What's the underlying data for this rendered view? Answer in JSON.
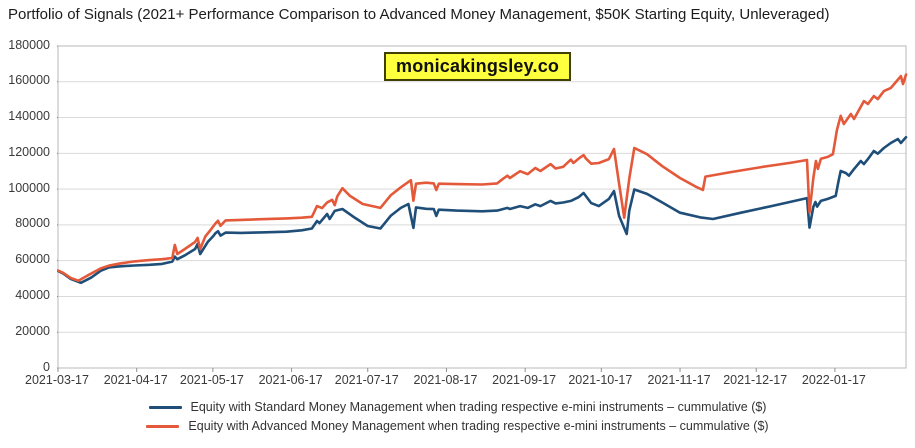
{
  "title": "Portfolio of Signals (2021+ Performance Comparison to Advanced Money Management, $50K Starting Equity, Unleveraged)",
  "watermark": {
    "text": "monicakingsley.co",
    "bg_color": "#feff3d",
    "border_color": "#3f3f00",
    "text_color": "#101010"
  },
  "colors": {
    "standard": "#1f4e79",
    "advanced": "#e4593a",
    "grid": "#d9d9d9",
    "border": "#b9b9b9",
    "tick": "#8f8f8f",
    "label_text": "#3a3a3a"
  },
  "chart_data": {
    "type": "line",
    "title": "Portfolio of Signals (2021+ Performance Comparison to Advanced Money Management, $50K Starting Equity, Unleveraged)",
    "xlabel": "",
    "ylabel": "",
    "grid": "horizontal",
    "legend_position": "bottom",
    "x_axis": {
      "unit": "days since 2021-03-17",
      "range_days": [
        0,
        334
      ],
      "tick_days": [
        0,
        31,
        61,
        92,
        122,
        153,
        184,
        214,
        245,
        275,
        306
      ],
      "tick_labels": [
        "2021-03-17",
        "2021-04-17",
        "2021-05-17",
        "2021-06-17",
        "2021-07-17",
        "2021-08-17",
        "2021-09-17",
        "2021-10-17",
        "2021-11-17",
        "2021-12-17",
        "2022-01-17"
      ]
    },
    "y_axis": {
      "range": [
        0,
        180000
      ],
      "tick_step": 20000,
      "tick_labels": [
        "0",
        "20000",
        "40000",
        "60000",
        "80000",
        "100000",
        "120000",
        "140000",
        "160000",
        "180000"
      ]
    },
    "series": [
      {
        "name": "Equity with Standard Money Management when trading respective e-mini instruments – cummulative ($)",
        "color_key": "standard",
        "points": [
          [
            0,
            54300
          ],
          [
            2,
            52900
          ],
          [
            5,
            49800
          ],
          [
            9,
            47600
          ],
          [
            13,
            50500
          ],
          [
            17,
            54500
          ],
          [
            20,
            56200
          ],
          [
            24,
            56800
          ],
          [
            30,
            57300
          ],
          [
            36,
            57700
          ],
          [
            41,
            58200
          ],
          [
            45,
            59500
          ],
          [
            46,
            62300
          ],
          [
            47,
            60800
          ],
          [
            50,
            63000
          ],
          [
            54,
            66500
          ],
          [
            55,
            69300
          ],
          [
            56,
            63700
          ],
          [
            59,
            70500
          ],
          [
            61,
            73500
          ],
          [
            62,
            75300
          ],
          [
            63,
            76500
          ],
          [
            64,
            74000
          ],
          [
            66,
            75700
          ],
          [
            72,
            75500
          ],
          [
            80,
            75800
          ],
          [
            90,
            76200
          ],
          [
            96,
            77000
          ],
          [
            100,
            78000
          ],
          [
            102,
            82200
          ],
          [
            103,
            81000
          ],
          [
            106,
            86100
          ],
          [
            107,
            83300
          ],
          [
            109,
            87800
          ],
          [
            112,
            88900
          ],
          [
            117,
            83900
          ],
          [
            122,
            79400
          ],
          [
            127,
            78000
          ],
          [
            131,
            85000
          ],
          [
            135,
            89500
          ],
          [
            138,
            91700
          ],
          [
            140,
            78300
          ],
          [
            141,
            89800
          ],
          [
            145,
            89000
          ],
          [
            148,
            88800
          ],
          [
            149,
            85000
          ],
          [
            150,
            88500
          ],
          [
            157,
            88000
          ],
          [
            167,
            87600
          ],
          [
            173,
            88000
          ],
          [
            177,
            89500
          ],
          [
            178,
            88900
          ],
          [
            182,
            90500
          ],
          [
            185,
            89500
          ],
          [
            188,
            91500
          ],
          [
            190,
            90500
          ],
          [
            194,
            93400
          ],
          [
            196,
            92000
          ],
          [
            199,
            92500
          ],
          [
            202,
            93400
          ],
          [
            205,
            95500
          ],
          [
            207,
            97800
          ],
          [
            210,
            92200
          ],
          [
            213,
            90500
          ],
          [
            217,
            94500
          ],
          [
            219,
            98900
          ],
          [
            221,
            85000
          ],
          [
            224,
            74900
          ],
          [
            225,
            88000
          ],
          [
            227,
            99800
          ],
          [
            232,
            97300
          ],
          [
            238,
            92500
          ],
          [
            245,
            86800
          ],
          [
            253,
            84200
          ],
          [
            258,
            83300
          ],
          [
            269,
            86800
          ],
          [
            281,
            90500
          ],
          [
            295,
            95000
          ],
          [
            296,
            78500
          ],
          [
            297.5,
            90000
          ],
          [
            298.3,
            92800
          ],
          [
            299,
            90200
          ],
          [
            300.5,
            93400
          ],
          [
            303.2,
            94500
          ],
          [
            306.3,
            96200
          ],
          [
            307.5,
            105000
          ],
          [
            308.3,
            110100
          ],
          [
            310.3,
            109000
          ],
          [
            311.5,
            107500
          ],
          [
            313.5,
            111200
          ],
          [
            316.2,
            115700
          ],
          [
            317.4,
            114000
          ],
          [
            319.4,
            117500
          ],
          [
            321.3,
            121300
          ],
          [
            322.9,
            119800
          ],
          [
            325.3,
            123000
          ],
          [
            328,
            125800
          ],
          [
            330.8,
            128000
          ],
          [
            332,
            125800
          ],
          [
            334,
            129000
          ]
        ]
      },
      {
        "name": "Equity with Advanced Money Management when trading respective e-mini instruments – cummulative ($)",
        "color_key": "advanced",
        "points": [
          [
            0,
            54500
          ],
          [
            2,
            53200
          ],
          [
            5,
            50300
          ],
          [
            8,
            48800
          ],
          [
            12,
            52000
          ],
          [
            17,
            55800
          ],
          [
            20,
            57200
          ],
          [
            24,
            58300
          ],
          [
            30,
            59600
          ],
          [
            36,
            60300
          ],
          [
            41,
            60800
          ],
          [
            45,
            61500
          ],
          [
            46,
            68800
          ],
          [
            47,
            63700
          ],
          [
            50,
            66500
          ],
          [
            54,
            70500
          ],
          [
            55,
            72700
          ],
          [
            56,
            66500
          ],
          [
            58,
            73500
          ],
          [
            60,
            77000
          ],
          [
            62,
            80800
          ],
          [
            63,
            82300
          ],
          [
            64,
            79500
          ],
          [
            66,
            82500
          ],
          [
            72,
            82800
          ],
          [
            80,
            83200
          ],
          [
            90,
            83600
          ],
          [
            96,
            84000
          ],
          [
            100,
            84500
          ],
          [
            102,
            90500
          ],
          [
            104,
            89400
          ],
          [
            106,
            92500
          ],
          [
            108,
            94000
          ],
          [
            109,
            91000
          ],
          [
            110,
            96000
          ],
          [
            112,
            100500
          ],
          [
            115,
            96200
          ],
          [
            120,
            91700
          ],
          [
            127,
            89500
          ],
          [
            131,
            96500
          ],
          [
            135,
            101000
          ],
          [
            139,
            105000
          ],
          [
            140,
            93500
          ],
          [
            141,
            103000
          ],
          [
            145,
            103600
          ],
          [
            148,
            103200
          ],
          [
            149,
            99500
          ],
          [
            150,
            103000
          ],
          [
            157,
            102800
          ],
          [
            167,
            102600
          ],
          [
            173,
            103200
          ],
          [
            175,
            105500
          ],
          [
            177,
            107500
          ],
          [
            178,
            106200
          ],
          [
            182,
            110000
          ],
          [
            185,
            108400
          ],
          [
            188,
            111800
          ],
          [
            190,
            110100
          ],
          [
            194,
            114000
          ],
          [
            196,
            111500
          ],
          [
            199,
            112500
          ],
          [
            202,
            116500
          ],
          [
            203,
            114600
          ],
          [
            205,
            117000
          ],
          [
            207,
            119000
          ],
          [
            208,
            117000
          ],
          [
            210,
            114200
          ],
          [
            213,
            114600
          ],
          [
            217,
            116800
          ],
          [
            219,
            122400
          ],
          [
            221,
            103000
          ],
          [
            223,
            84000
          ],
          [
            225,
            106000
          ],
          [
            227,
            123000
          ],
          [
            232,
            119500
          ],
          [
            238,
            112800
          ],
          [
            245,
            106200
          ],
          [
            251,
            101500
          ],
          [
            254,
            99500
          ],
          [
            255,
            107000
          ],
          [
            265,
            109500
          ],
          [
            277,
            112300
          ],
          [
            289,
            114800
          ],
          [
            295,
            116300
          ],
          [
            296,
            87000
          ],
          [
            297.5,
            106000
          ],
          [
            298.5,
            115700
          ],
          [
            299.3,
            111300
          ],
          [
            300.5,
            117000
          ],
          [
            303.2,
            118000
          ],
          [
            305.2,
            119500
          ],
          [
            306.8,
            133000
          ],
          [
            308.3,
            141000
          ],
          [
            309.5,
            136400
          ],
          [
            312.3,
            142000
          ],
          [
            313.5,
            139200
          ],
          [
            317.4,
            149200
          ],
          [
            319,
            147600
          ],
          [
            321.3,
            152000
          ],
          [
            322.9,
            150300
          ],
          [
            325.3,
            154800
          ],
          [
            328,
            156500
          ],
          [
            332,
            163200
          ],
          [
            332.8,
            158700
          ],
          [
            334,
            164000
          ]
        ]
      }
    ]
  }
}
